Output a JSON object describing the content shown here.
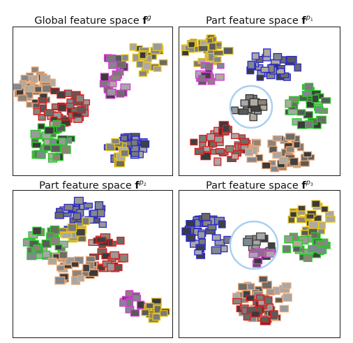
{
  "panels": [
    {
      "id": "global",
      "title_text": "Global feature space ",
      "symbol": "f",
      "superscript": "g",
      "superscript_subscript": "",
      "clusters": [
        {
          "color": "#e0e0e0",
          "frame": "#f0a070",
          "label": "cluster-beige"
        },
        {
          "color": "#c00000",
          "frame": "#e03030",
          "label": "cluster-red"
        },
        {
          "color": "#20c020",
          "frame": "#30d030",
          "label": "cluster-green"
        },
        {
          "color": "#e040e0",
          "frame": "#d050d0",
          "label": "cluster-magenta"
        },
        {
          "color": "#e0c000",
          "frame": "#e8c020",
          "label": "cluster-yellow"
        },
        {
          "color": "#2020c0",
          "frame": "#3030d0",
          "label": "cluster-blue"
        }
      ]
    },
    {
      "id": "part1",
      "title_text": "Part feature space ",
      "symbol": "f",
      "superscript": "p",
      "superscript_subscript": "1"
    },
    {
      "id": "part2",
      "title_text": "Part feature space ",
      "symbol": "f",
      "superscript": "p",
      "superscript_subscript": "2"
    },
    {
      "id": "part3",
      "title_text": "Part feature space ",
      "symbol": "f",
      "superscript": "p",
      "superscript_subscript": "3"
    }
  ],
  "colors": {
    "red": "#d42020",
    "green": "#28c828",
    "blue": "#2a2ac8",
    "yellow": "#e6c41a",
    "magenta": "#d040d0",
    "beige": "#e8a878",
    "highlight_circle": "#a8d0f0"
  }
}
